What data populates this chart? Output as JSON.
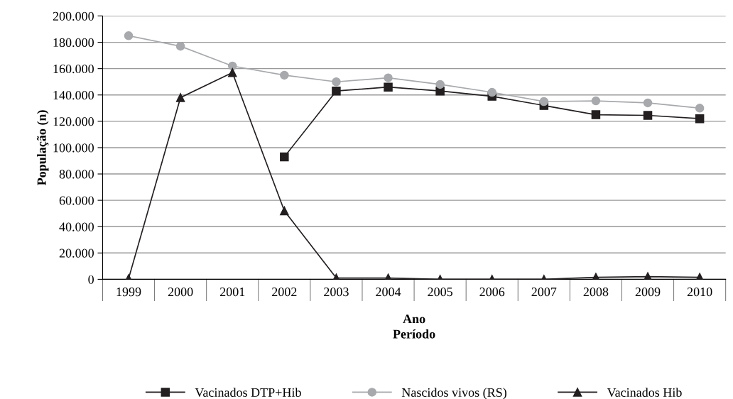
{
  "chart_data": {
    "type": "line",
    "xlabel": "Ano\nPeríodo",
    "ylabel": "População (n)",
    "categories": [
      "1999",
      "2000",
      "2001",
      "2002",
      "2003",
      "2004",
      "2005",
      "2006",
      "2007",
      "2008",
      "2009",
      "2010"
    ],
    "series": [
      {
        "name": "Vacinados DTP+Hib",
        "color": "#231f20",
        "marker": "square",
        "values": [
          null,
          null,
          null,
          93000,
          143000,
          146000,
          143000,
          139000,
          132000,
          125000,
          124500,
          122000
        ]
      },
      {
        "name": "Nascidos vivos (RS)",
        "color": "#a7a9ac",
        "marker": "circle",
        "values": [
          185000,
          177000,
          162000,
          155000,
          150000,
          153000,
          148000,
          142000,
          135000,
          135500,
          134000,
          130000
        ]
      },
      {
        "name": "Vacinados Hib",
        "color": "#231f20",
        "marker": "triangle",
        "values": [
          500,
          138000,
          157000,
          52000,
          1000,
          1000,
          0,
          0,
          0,
          1500,
          2000,
          1500
        ]
      }
    ],
    "ylim": [
      0,
      200000
    ],
    "yticks": [
      {
        "value": 0,
        "label": "0"
      },
      {
        "value": 20000,
        "label": "20.000"
      },
      {
        "value": 40000,
        "label": "40.000"
      },
      {
        "value": 60000,
        "label": "60.000"
      },
      {
        "value": 80000,
        "label": "80.000"
      },
      {
        "value": 100000,
        "label": "100.000"
      },
      {
        "value": 120000,
        "label": "120.000"
      },
      {
        "value": 140000,
        "label": "140.000"
      },
      {
        "value": 160000,
        "label": "160.000"
      },
      {
        "value": 180000,
        "label": "180.000"
      },
      {
        "value": 200000,
        "label": "200.000"
      }
    ],
    "grid": "y",
    "legend": "bottom",
    "line_style": "solid"
  }
}
